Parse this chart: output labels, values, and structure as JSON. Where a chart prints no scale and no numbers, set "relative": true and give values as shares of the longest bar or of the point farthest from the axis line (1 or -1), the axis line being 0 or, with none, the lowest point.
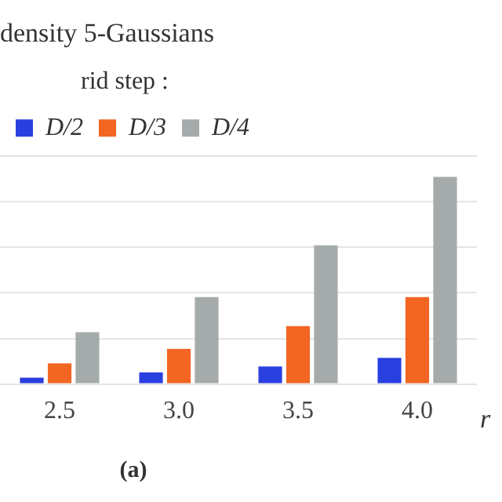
{
  "chart_data": {
    "type": "bar",
    "title": "density 5-Gaussians",
    "legend_title": "rid step :",
    "xlabel": "r",
    "annotations": [
      "(a)"
    ],
    "categories": [
      "2.5",
      "3.0",
      "3.5",
      "4.0"
    ],
    "series": [
      {
        "name": "D/2",
        "color": "#2a3fe0",
        "values": [
          0.031,
          0.056,
          0.085,
          0.126
        ]
      },
      {
        "name": "D/3",
        "color": "#f26522",
        "values": [
          0.1,
          0.17,
          0.28,
          0.42
        ]
      },
      {
        "name": "D/4",
        "color": "#a5abaa",
        "values": [
          0.25,
          0.42,
          0.67,
          1
        ]
      }
    ],
    "relative": true,
    "grid": "y",
    "legend": "top left"
  }
}
